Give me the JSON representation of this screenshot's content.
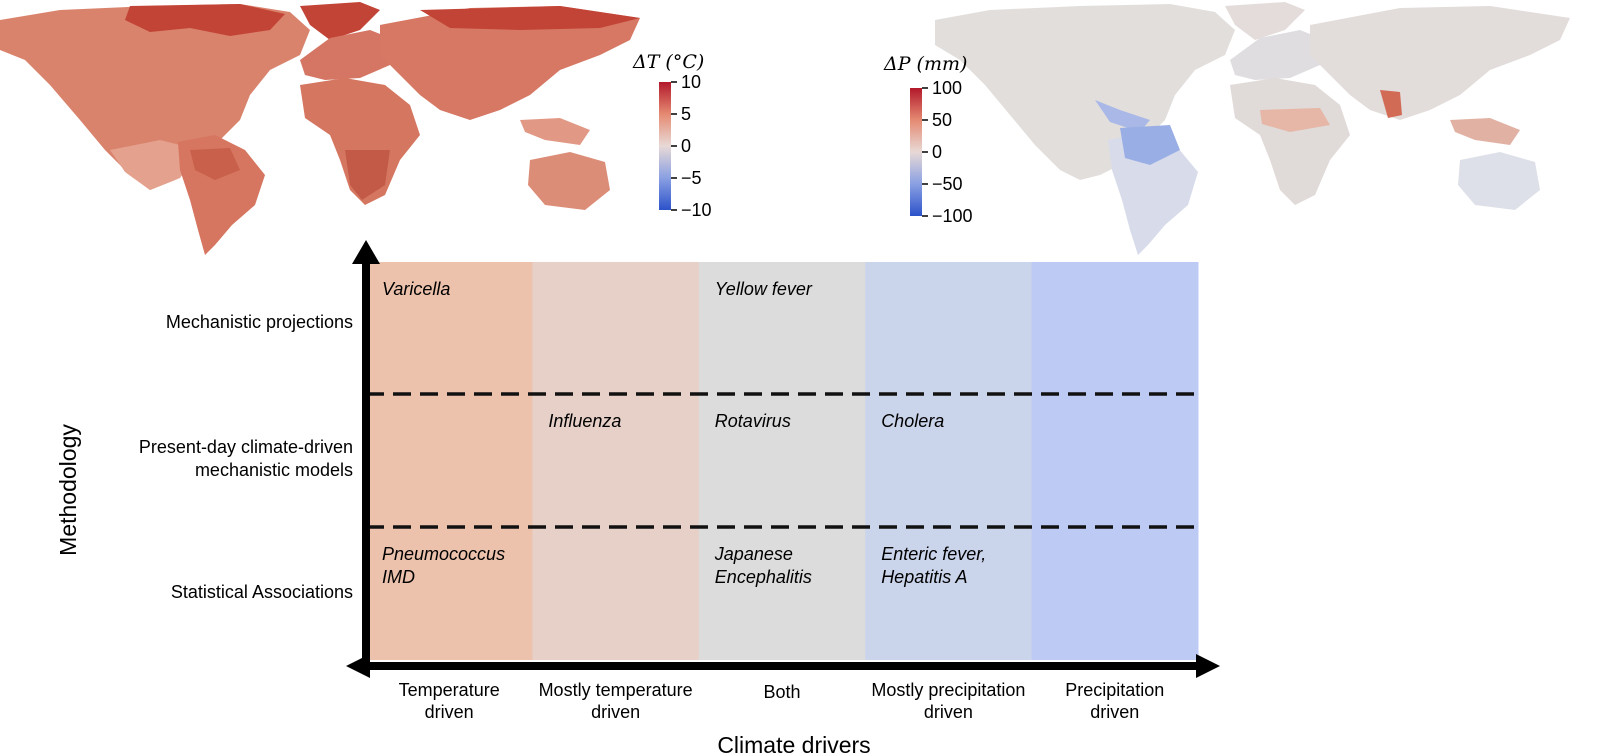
{
  "maps": {
    "temperature": {
      "colorbar_title": "ΔT (°C)",
      "ticks": [
        "10",
        "5",
        "0",
        "−5",
        "−10"
      ],
      "colors": {
        "high": "#b2182b",
        "mid": "#e8d9d6",
        "low": "#2c52c9"
      }
    },
    "precipitation": {
      "colorbar_title": "ΔP (mm)",
      "ticks": [
        "100",
        "50",
        "0",
        "−50",
        "−100"
      ],
      "colors": {
        "high": "#b2182b",
        "mid": "#e8d9d6",
        "low": "#2c52c9"
      }
    }
  },
  "diagram": {
    "y_axis_title": "Methodology",
    "x_axis_title": "Climate drivers",
    "rows": [
      "Mechanistic projections",
      "Present-day climate-driven mechanistic models",
      "Statistical Associations"
    ],
    "row_lines": [
      [
        "Mechanistic projections"
      ],
      [
        "Present-day climate-driven",
        "mechanistic models"
      ],
      [
        "Statistical Associations"
      ]
    ],
    "columns": [
      {
        "lines": [
          "Temperature",
          "driven"
        ],
        "color": "#ecc2ac"
      },
      {
        "lines": [
          "Mostly temperature",
          "driven"
        ],
        "color": "#e6d0c7"
      },
      {
        "lines": [
          "Both"
        ],
        "color": "#dcdcdc"
      },
      {
        "lines": [
          "Mostly precipitation",
          "driven"
        ],
        "color": "#cad4ea"
      },
      {
        "lines": [
          "Precipitation",
          "driven"
        ],
        "color": "#bccaf4"
      }
    ],
    "diseases": [
      {
        "lines": [
          "Varicella"
        ],
        "row": 0,
        "col": 0
      },
      {
        "lines": [
          "Yellow fever"
        ],
        "row": 0,
        "col": 2
      },
      {
        "lines": [
          "Influenza"
        ],
        "row": 1,
        "col": 1
      },
      {
        "lines": [
          "Rotavirus"
        ],
        "row": 1,
        "col": 2
      },
      {
        "lines": [
          "Cholera"
        ],
        "row": 1,
        "col": 3
      },
      {
        "lines": [
          "Pneumococcus",
          "IMD"
        ],
        "row": 2,
        "col": 0
      },
      {
        "lines": [
          "Japanese",
          "Encephalitis"
        ],
        "row": 2,
        "col": 2
      },
      {
        "lines": [
          "Enteric fever,",
          "Hepatitis A"
        ],
        "row": 2,
        "col": 3
      }
    ]
  }
}
